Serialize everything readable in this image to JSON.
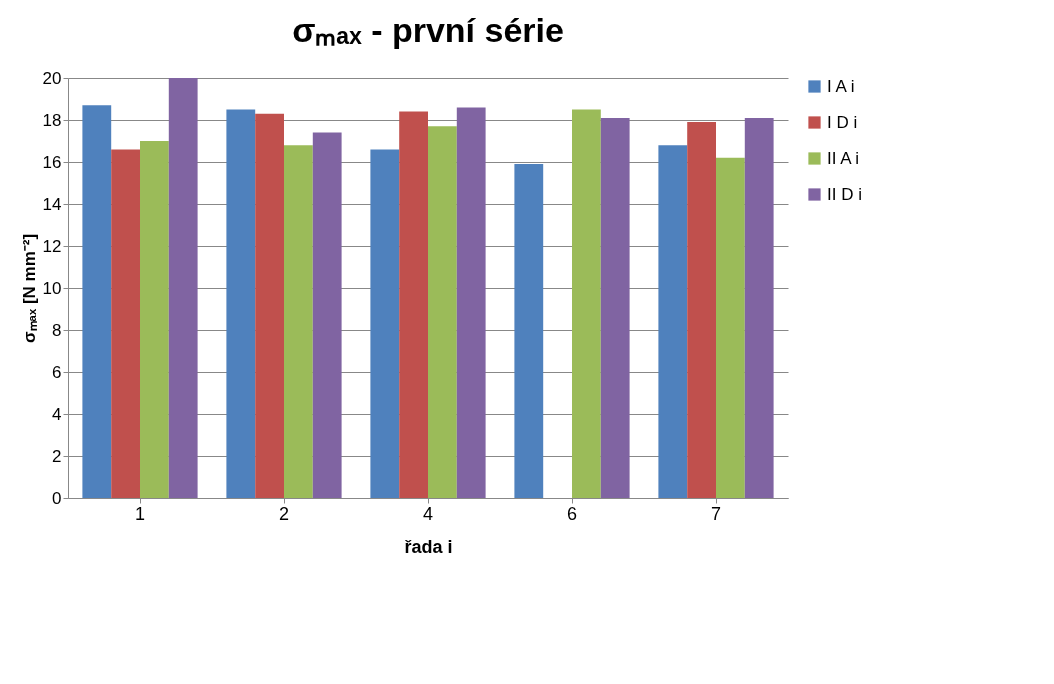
{
  "chart_data": {
    "type": "bar",
    "title": "σₘₐₓ - první série",
    "xlabel": "řada i",
    "ylabel": "σₘₐₓ [N mm⁻²]",
    "categories": [
      "1",
      "2",
      "4",
      "6",
      "7"
    ],
    "series": [
      {
        "name": "I A i",
        "color": "#4f81bd",
        "values": [
          18.7,
          18.5,
          16.6,
          15.9,
          16.8
        ]
      },
      {
        "name": "I D i",
        "color": "#c0504d",
        "values": [
          16.6,
          18.3,
          18.4,
          0,
          17.9
        ]
      },
      {
        "name": "II A i",
        "color": "#9bbb59",
        "values": [
          17.0,
          16.8,
          17.7,
          18.5,
          16.2
        ]
      },
      {
        "name": "II D i",
        "color": "#8064a2",
        "values": [
          20.0,
          17.4,
          18.6,
          18.1,
          18.1
        ]
      }
    ],
    "ylim": [
      0,
      20
    ],
    "yticks": [
      0,
      2,
      4,
      6,
      8,
      10,
      12,
      14,
      16,
      18,
      20
    ],
    "grid": "y",
    "legend": "right"
  }
}
